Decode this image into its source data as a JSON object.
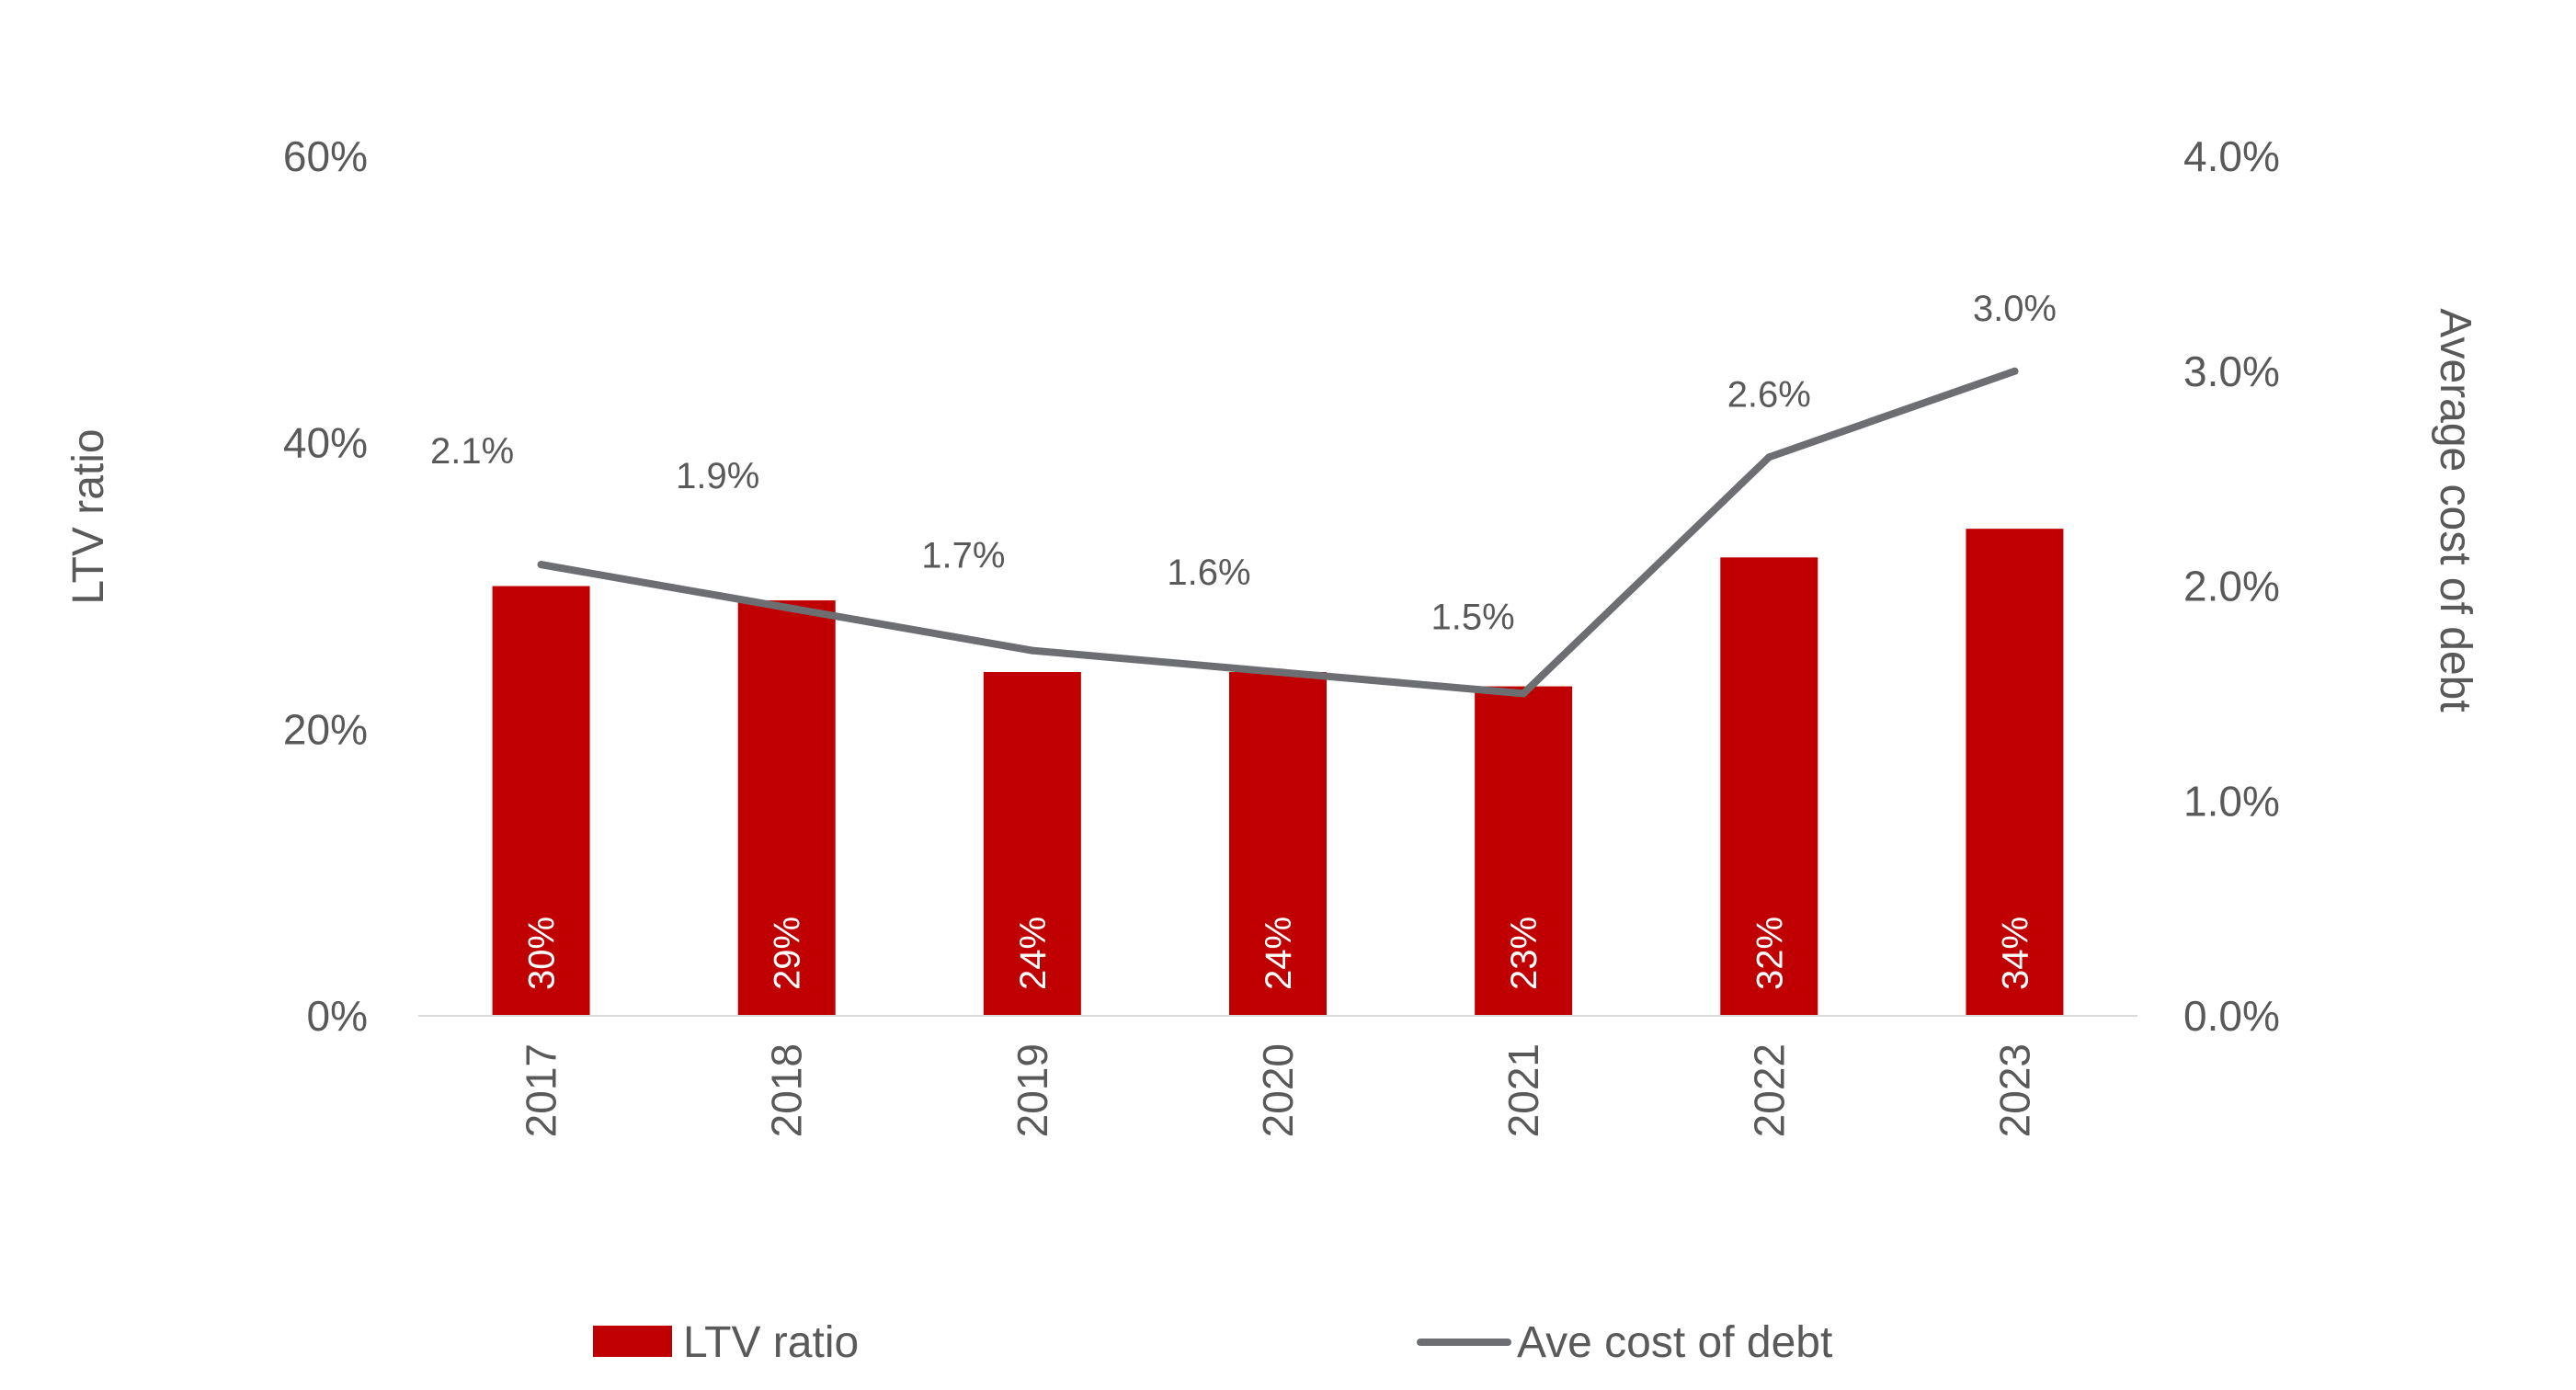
{
  "chart_data": {
    "type": "bar",
    "categories": [
      "2017",
      "2018",
      "2019",
      "2020",
      "2021",
      "2022",
      "2023"
    ],
    "series": [
      {
        "name": "LTV ratio",
        "type": "bar",
        "axis": "left",
        "values": [
          30,
          29,
          24,
          24,
          23,
          32,
          34
        ],
        "labels": [
          "30%",
          "29%",
          "24%",
          "24%",
          "23%",
          "32%",
          "34%"
        ],
        "color": "#c00000"
      },
      {
        "name": "Ave cost of debt",
        "type": "line",
        "axis": "right",
        "values": [
          2.1,
          1.9,
          1.7,
          1.6,
          1.5,
          2.6,
          3.0
        ],
        "labels": [
          "2.1%",
          "1.9%",
          "1.7%",
          "1.6%",
          "1.5%",
          "2.6%",
          "3.0%"
        ],
        "color": "#6d6e71"
      }
    ],
    "y_left": {
      "label": "LTV ratio",
      "range": [
        0,
        60
      ],
      "ticks": [
        0,
        20,
        40,
        60
      ],
      "tick_labels": [
        "0%",
        "20%",
        "40%",
        "60%"
      ]
    },
    "y_right": {
      "label": "Average cost of debt",
      "range": [
        0,
        4
      ],
      "ticks": [
        0,
        1,
        2,
        3,
        4
      ],
      "tick_labels": [
        "0.0%",
        "1.0%",
        "2.0%",
        "3.0%",
        "4.0%"
      ]
    },
    "xlabel": "",
    "grid": false,
    "legend": {
      "position": "bottom",
      "entries": [
        "LTV ratio",
        "Ave cost of debt"
      ]
    },
    "x_tick_rotation": "vertical",
    "bar_label_rotation": "vertical"
  }
}
